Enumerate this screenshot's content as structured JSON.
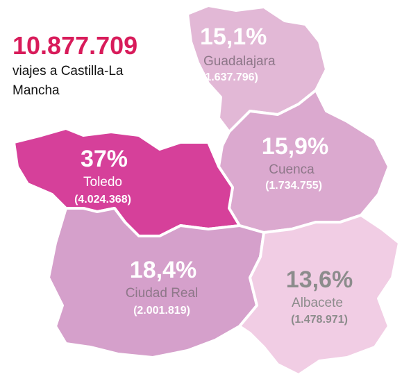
{
  "header": {
    "total": "10.877.709",
    "subtitle_line1": "viajes a Castilla-La",
    "subtitle_line2": "Mancha"
  },
  "regions": [
    {
      "name": "Guadalajara",
      "percent": "15,1%",
      "trips": "(1.637.796)",
      "color": "#e2b8d6"
    },
    {
      "name": "Cuenca",
      "percent": "15,9%",
      "trips": "(1.734.755)",
      "color": "#dba9cf"
    },
    {
      "name": "Toledo",
      "percent": "37%",
      "trips": "(4.024.368)",
      "color": "#d6409a"
    },
    {
      "name": "Ciudad Real",
      "percent": "18,4%",
      "trips": "(2.001.819)",
      "color": "#d5a0cb"
    },
    {
      "name": "Albacete",
      "percent": "13,6%",
      "trips": "(1.478.971)",
      "color": "#f1cde4"
    }
  ]
}
